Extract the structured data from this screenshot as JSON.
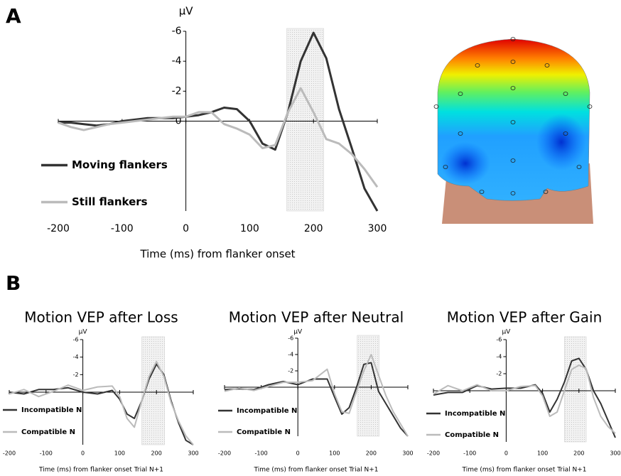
{
  "chart_data": [
    {
      "type": "line",
      "panel": "A",
      "ylabel": "μV",
      "xlabel": "Time (ms) from flanker onset",
      "x": [
        -200,
        -180,
        -160,
        -140,
        -120,
        -100,
        -80,
        -60,
        -40,
        -20,
        0,
        20,
        40,
        60,
        80,
        100,
        120,
        140,
        160,
        180,
        200,
        220,
        240,
        260,
        280,
        300
      ],
      "series": [
        {
          "name": "Moving flankers",
          "color": "#333333",
          "values": [
            0.1,
            0.1,
            0.2,
            0.3,
            0.2,
            0,
            -0.1,
            -0.2,
            -0.2,
            -0.2,
            -0.3,
            -0.4,
            -0.6,
            -0.9,
            -0.8,
            0,
            1.5,
            1.9,
            -0.6,
            -4.0,
            -5.9,
            -4.2,
            -0.8,
            1.8,
            4.5,
            6.0
          ]
        },
        {
          "name": "Still flankers",
          "color": "#bbbbbb",
          "values": [
            0.1,
            0.4,
            0.6,
            0.4,
            0.2,
            0.1,
            0,
            -0.1,
            -0.2,
            -0.3,
            -0.3,
            -0.6,
            -0.6,
            0.2,
            0.5,
            0.9,
            1.8,
            1.6,
            -0.6,
            -2.2,
            -0.6,
            1.2,
            1.5,
            2.2,
            3.2,
            4.4
          ]
        }
      ],
      "xlim": [
        -200,
        300
      ],
      "xticks": [
        -200,
        -100,
        0,
        100,
        200,
        300
      ],
      "ylim": [
        -6,
        6
      ],
      "yticks": [
        -6,
        -4,
        -2,
        0
      ],
      "y_inverted": true,
      "shaded": [
        158,
        216
      ]
    },
    {
      "type": "line",
      "panel": "B",
      "title": "Motion VEP after Loss",
      "ylabel": "μV",
      "xlabel": "Time (ms) from flanker onset Trial N+1",
      "x": [
        -200,
        -160,
        -120,
        -80,
        -40,
        0,
        40,
        80,
        100,
        120,
        140,
        160,
        180,
        200,
        220,
        240,
        260,
        280,
        300
      ],
      "series": [
        {
          "name": "Incompatible N",
          "color": "#333333",
          "values": [
            0,
            0.2,
            -0.3,
            -0.3,
            -0.5,
            0,
            0.2,
            -0.2,
            0.8,
            2.5,
            3.0,
            1.0,
            -1.5,
            -3.2,
            -2.0,
            1.0,
            3.5,
            5.5,
            6.0
          ]
        },
        {
          "name": "Compatible N",
          "color": "#bbbbbb",
          "values": [
            0.2,
            -0.3,
            0.5,
            -0.1,
            -0.8,
            -0.2,
            -0.6,
            -0.7,
            0.5,
            3.0,
            4.0,
            1.0,
            -1.8,
            -3.5,
            -1.8,
            1.2,
            3.3,
            5.0,
            6.0
          ]
        }
      ],
      "xlim": [
        -200,
        300
      ],
      "xticks": [
        -200,
        -100,
        0,
        100,
        200,
        300
      ],
      "ylim": [
        -6,
        6
      ],
      "yticks": [
        -6,
        -4,
        -2
      ],
      "y_inverted": true,
      "shaded": [
        160,
        222
      ]
    },
    {
      "type": "line",
      "title": "Motion VEP after Neutral",
      "ylabel": "μV",
      "xlabel": "Time (ms) from flanker onset Trial N+1",
      "x": [
        -200,
        -160,
        -120,
        -80,
        -40,
        0,
        40,
        80,
        100,
        120,
        140,
        160,
        180,
        200,
        220,
        240,
        260,
        280,
        300
      ],
      "series": [
        {
          "name": "Incompatible N",
          "color": "#333333",
          "values": [
            0.3,
            0.2,
            0.3,
            -0.3,
            -0.7,
            -0.3,
            -1.0,
            -1.0,
            1.2,
            3.3,
            2.5,
            0,
            -2.8,
            -3.0,
            0.5,
            2.0,
            3.5,
            5.0,
            6.0
          ]
        },
        {
          "name": "Compatible N",
          "color": "#bbbbbb",
          "values": [
            0.5,
            0.1,
            0.4,
            -0.1,
            -0.6,
            -0.6,
            -0.8,
            -2.2,
            0.8,
            3.0,
            3.2,
            0.5,
            -2.0,
            -4.0,
            -1.5,
            1.0,
            3.0,
            4.5,
            6.0
          ]
        }
      ],
      "xlim": [
        -200,
        300
      ],
      "xticks": [
        -200,
        -100,
        0,
        100,
        200,
        300
      ],
      "ylim": [
        -6,
        6
      ],
      "yticks": [
        -6,
        -4,
        -2
      ],
      "y_inverted": true,
      "shaded": [
        162,
        222
      ]
    },
    {
      "type": "line",
      "title": "Motion VEP after Gain",
      "ylabel": "μV",
      "xlabel": "Time (ms) from flanker onset Trial N+1",
      "x": [
        -200,
        -160,
        -120,
        -80,
        -40,
        0,
        40,
        80,
        100,
        120,
        140,
        160,
        180,
        200,
        220,
        240,
        260,
        280,
        300
      ],
      "series": [
        {
          "name": "Incompatible N",
          "color": "#333333",
          "values": [
            0.5,
            0.2,
            0.2,
            -0.6,
            -0.2,
            -0.3,
            -0.3,
            -0.7,
            0.3,
            2.5,
            1.0,
            -1.0,
            -3.5,
            -3.8,
            -2.5,
            0,
            1.5,
            3.5,
            5.5
          ]
        },
        {
          "name": "Compatible N",
          "color": "#bbbbbb",
          "values": [
            0.4,
            -0.6,
            0,
            -0.7,
            0,
            0,
            -0.5,
            -0.6,
            0.6,
            3.0,
            2.5,
            0,
            -2.5,
            -3.0,
            -2.6,
            0.8,
            3.0,
            4.2,
            5.0
          ]
        }
      ],
      "xlim": [
        -200,
        300
      ],
      "xticks": [
        -200,
        -100,
        0,
        100,
        200,
        300
      ],
      "ylim": [
        -6,
        6
      ],
      "yticks": [
        -6,
        -4,
        -2
      ],
      "y_inverted": true,
      "shaded": [
        160,
        220
      ]
    }
  ]
}
